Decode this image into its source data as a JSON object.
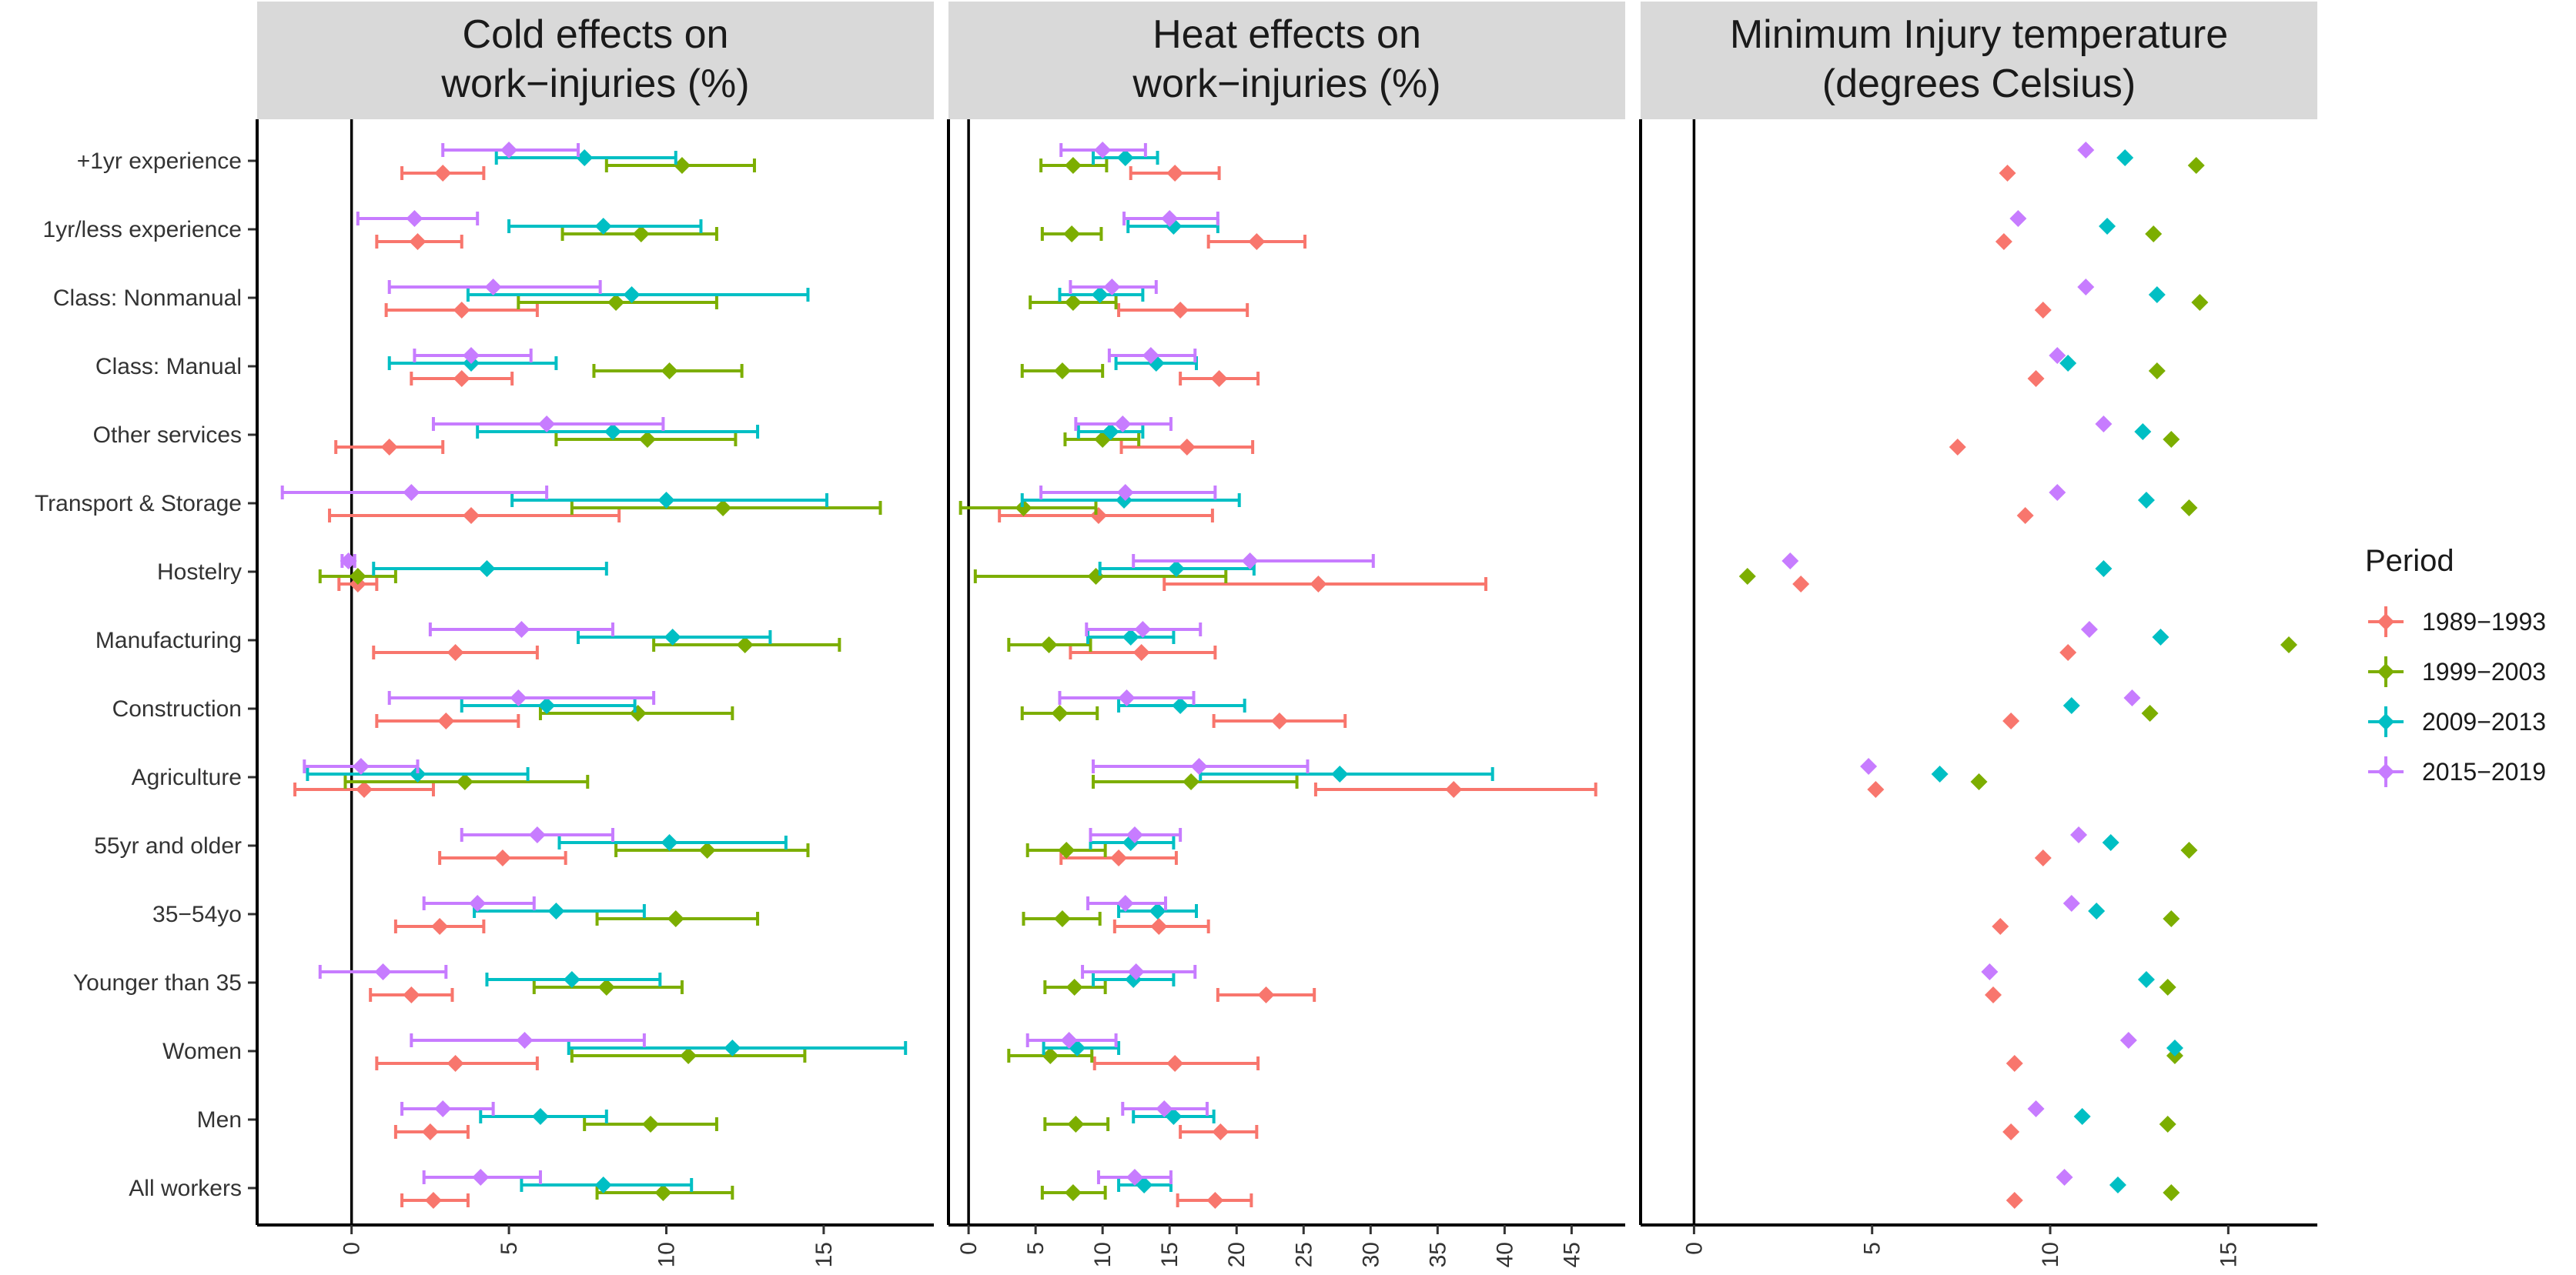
{
  "legend": {
    "title": "Period",
    "items": [
      {
        "label": "1989−1993",
        "color": "#F8766D"
      },
      {
        "label": "1999−2003",
        "color": "#7CAE00"
      },
      {
        "label": "2009−2013",
        "color": "#00BFC4"
      },
      {
        "label": "2015−2019",
        "color": "#C77CFF"
      }
    ]
  },
  "chart_data": {
    "type": "scatter",
    "style": "dot-and-whisker, faceted",
    "legend_position": "right",
    "grid": false,
    "categories": [
      "+1yr experience",
      "1yr/less experience",
      "Class: Nonmanual",
      "Class: Manual",
      "Other services",
      "Transport & Storage",
      "Hostelry",
      "Manufacturing",
      "Construction",
      "Agriculture",
      "55yr and older",
      "35−54yo",
      "Younger than 35",
      "Women",
      "Men",
      "All workers"
    ],
    "periods": [
      "1989−1993",
      "1999−2003",
      "2009−2013",
      "2015−2019"
    ],
    "panels": [
      {
        "title_line1": "Cold effects on",
        "title_line2": "work−injuries (%)",
        "xlim": [
          -3,
          18.5
        ],
        "ticks": [
          0,
          5,
          10,
          15
        ],
        "tick_labels": [
          "0",
          "5",
          "10",
          "15"
        ],
        "series": [
          {
            "name": "1989−1993",
            "estimate": [
              2.9,
              2.1,
              3.5,
              3.5,
              1.2,
              3.8,
              0.2,
              3.3,
              3.0,
              0.4,
              4.8,
              2.8,
              1.9,
              3.3,
              2.5,
              2.6
            ],
            "lower": [
              1.6,
              0.8,
              1.1,
              1.9,
              -0.5,
              -0.7,
              -0.4,
              0.7,
              0.8,
              -1.8,
              2.8,
              1.4,
              0.6,
              0.8,
              1.4,
              1.6
            ],
            "upper": [
              4.2,
              3.5,
              5.9,
              5.1,
              2.9,
              8.5,
              0.8,
              5.9,
              5.3,
              2.6,
              6.8,
              4.2,
              3.2,
              5.9,
              3.7,
              3.7
            ]
          },
          {
            "name": "1999−2003",
            "estimate": [
              10.5,
              9.2,
              8.4,
              10.1,
              9.4,
              11.8,
              0.2,
              12.5,
              9.1,
              3.6,
              11.3,
              10.3,
              8.1,
              10.7,
              9.5,
              9.9
            ],
            "lower": [
              8.1,
              6.7,
              5.3,
              7.7,
              6.5,
              7.0,
              -1.0,
              9.6,
              6.0,
              -0.2,
              8.4,
              7.8,
              5.8,
              7.0,
              7.4,
              7.8
            ],
            "upper": [
              12.8,
              11.6,
              11.6,
              12.4,
              12.2,
              16.8,
              1.4,
              15.5,
              12.1,
              7.5,
              14.5,
              12.9,
              10.5,
              14.4,
              11.6,
              12.1
            ]
          },
          {
            "name": "2009−2013",
            "estimate": [
              7.4,
              8.0,
              8.9,
              3.8,
              8.3,
              10.0,
              4.3,
              10.2,
              6.2,
              2.1,
              10.1,
              6.5,
              7.0,
              12.1,
              6.0,
              8.0
            ],
            "lower": [
              4.6,
              5.0,
              3.7,
              1.2,
              4.0,
              5.1,
              0.7,
              7.2,
              3.5,
              -1.4,
              6.6,
              3.9,
              4.3,
              6.9,
              4.1,
              5.4
            ],
            "upper": [
              10.3,
              11.1,
              14.5,
              6.5,
              12.9,
              15.1,
              8.1,
              13.3,
              9.0,
              5.6,
              13.8,
              9.3,
              9.8,
              17.6,
              8.1,
              10.8
            ]
          },
          {
            "name": "2015−2019",
            "estimate": [
              5.0,
              2.0,
              4.5,
              3.8,
              6.2,
              1.9,
              -0.1,
              5.4,
              5.3,
              0.3,
              5.9,
              4.0,
              1.0,
              5.5,
              2.9,
              4.1
            ],
            "lower": [
              2.9,
              0.2,
              1.2,
              2.0,
              2.6,
              -2.2,
              -0.3,
              2.5,
              1.2,
              -1.5,
              3.5,
              2.3,
              -1.0,
              1.9,
              1.6,
              2.3
            ],
            "upper": [
              7.2,
              4.0,
              7.9,
              5.7,
              9.9,
              6.2,
              0.1,
              8.3,
              9.6,
              2.1,
              8.3,
              5.8,
              3.0,
              9.3,
              4.5,
              6.0
            ]
          }
        ]
      },
      {
        "title_line1": "Heat effects on",
        "title_line2": "work−injuries (%)",
        "xlim": [
          -1.5,
          49
        ],
        "ticks": [
          0,
          5,
          10,
          15,
          20,
          25,
          30,
          35,
          40,
          45
        ],
        "tick_labels": [
          "0",
          "5",
          "10",
          "15",
          "20",
          "25",
          "30",
          "35",
          "40",
          "45"
        ],
        "series": [
          {
            "name": "1989−1993",
            "estimate": [
              15.4,
              21.5,
              15.8,
              18.7,
              16.3,
              9.7,
              26.1,
              12.9,
              23.2,
              36.2,
              11.2,
              14.2,
              22.2,
              15.4,
              18.8,
              18.4
            ],
            "lower": [
              12.1,
              17.9,
              11.2,
              15.8,
              11.4,
              2.3,
              14.6,
              7.6,
              18.3,
              25.9,
              6.9,
              10.9,
              18.6,
              9.4,
              15.8,
              15.6
            ],
            "upper": [
              18.7,
              25.1,
              20.8,
              21.6,
              21.2,
              18.2,
              38.6,
              18.4,
              28.1,
              46.8,
              15.5,
              17.9,
              25.8,
              21.6,
              21.5,
              21.1
            ]
          },
          {
            "name": "1999−2003",
            "estimate": [
              7.8,
              7.7,
              7.8,
              7.0,
              10.0,
              4.1,
              9.5,
              6.0,
              6.8,
              16.6,
              7.3,
              7.0,
              7.9,
              6.1,
              8.0,
              7.8
            ],
            "lower": [
              5.4,
              5.5,
              4.6,
              4.0,
              7.2,
              -0.6,
              0.5,
              3.0,
              4.0,
              9.3,
              4.4,
              4.1,
              5.7,
              3.0,
              5.7,
              5.5
            ],
            "upper": [
              10.3,
              9.9,
              11.0,
              10.0,
              12.7,
              9.5,
              19.2,
              9.1,
              9.6,
              24.5,
              10.2,
              9.8,
              10.2,
              9.2,
              10.4,
              10.2
            ]
          },
          {
            "name": "2009−2013",
            "estimate": [
              11.7,
              15.3,
              9.8,
              14.0,
              10.6,
              11.6,
              15.5,
              12.1,
              15.8,
              27.7,
              12.1,
              14.1,
              12.3,
              8.1,
              15.3,
              13.1
            ],
            "lower": [
              9.3,
              11.9,
              6.8,
              11.0,
              8.2,
              4.0,
              9.8,
              8.9,
              11.2,
              17.3,
              9.1,
              11.2,
              9.3,
              5.6,
              12.3,
              11.2
            ],
            "upper": [
              14.1,
              18.6,
              13.0,
              17.0,
              13.0,
              20.2,
              21.3,
              15.3,
              20.6,
              39.1,
              15.3,
              17.0,
              15.3,
              11.2,
              18.3,
              15.1
            ]
          },
          {
            "name": "2015−2019",
            "estimate": [
              10.0,
              15.0,
              10.7,
              13.6,
              11.5,
              11.7,
              21.0,
              13.0,
              11.8,
              17.2,
              12.4,
              11.7,
              12.5,
              7.5,
              14.6,
              12.4
            ],
            "lower": [
              6.9,
              11.6,
              7.6,
              10.5,
              8.0,
              5.4,
              12.3,
              8.8,
              6.8,
              9.3,
              9.1,
              8.9,
              8.5,
              4.4,
              11.5,
              9.7
            ],
            "upper": [
              13.2,
              18.6,
              14.0,
              16.9,
              15.1,
              18.4,
              30.2,
              17.3,
              16.8,
              25.3,
              15.8,
              14.7,
              16.9,
              11.0,
              17.8,
              15.1
            ]
          }
        ]
      },
      {
        "title_line1": "Minimum Injury temperature",
        "title_line2": "(degrees Celsius)",
        "xlim": [
          -1.5,
          17.5
        ],
        "ticks": [
          0,
          5,
          10,
          15
        ],
        "tick_labels": [
          "0",
          "5",
          "10",
          "15"
        ],
        "series": [
          {
            "name": "1989−1993",
            "estimate": [
              8.8,
              8.7,
              9.8,
              9.6,
              7.4,
              9.3,
              3.0,
              10.5,
              8.9,
              5.1,
              9.8,
              8.6,
              8.4,
              9.0,
              8.9,
              9.0
            ]
          },
          {
            "name": "1999−2003",
            "estimate": [
              14.1,
              12.9,
              14.2,
              13.0,
              13.4,
              13.9,
              1.5,
              16.7,
              12.8,
              8.0,
              13.9,
              13.4,
              13.3,
              13.5,
              13.3,
              13.4
            ]
          },
          {
            "name": "2009−2013",
            "estimate": [
              12.1,
              11.6,
              13.0,
              10.5,
              12.6,
              12.7,
              11.5,
              13.1,
              10.6,
              6.9,
              11.7,
              11.3,
              12.7,
              13.5,
              10.9,
              11.9
            ]
          },
          {
            "name": "2015−2019",
            "estimate": [
              11.0,
              9.1,
              11.0,
              10.2,
              11.5,
              10.2,
              2.7,
              11.1,
              12.3,
              4.9,
              10.8,
              10.6,
              8.3,
              12.2,
              9.6,
              10.4
            ]
          }
        ]
      }
    ]
  }
}
